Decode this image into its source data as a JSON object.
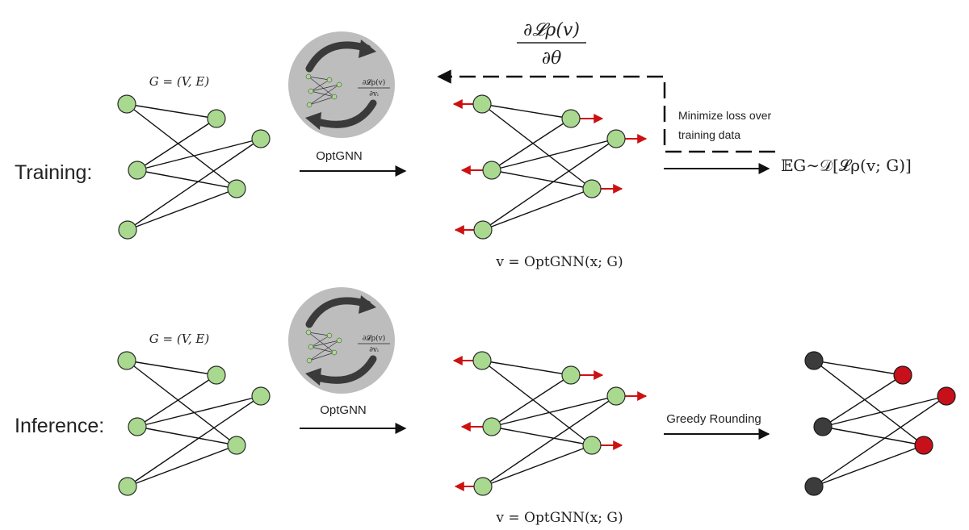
{
  "colors": {
    "node_fill": "#a8d98f",
    "node_stroke": "#2a2a2a",
    "edge": "#111111",
    "vector_arrow": "#cc1111",
    "gnn_circle": "#bdbdbd",
    "gnn_loop": "#3a3a3a",
    "rounded_black": "#3c3c3c",
    "rounded_red": "#c8101a"
  },
  "training": {
    "row_label": "Training:",
    "graph_label": "G = (V, E)",
    "gnn_label": "OptGNN",
    "gnn_inner_formula_num": "∂𝓛ρ(v)",
    "gnn_inner_formula_den": "∂vᵢ",
    "output_label": "v = OptGNN(x; G)",
    "gradient_num": "∂𝓛ρ(v)",
    "gradient_den": "∂θ",
    "minimize_line1": "Minimize loss over",
    "minimize_line2": "training data",
    "expectation": "𝔼G∼𝒟[𝓛ρ(v; G)]"
  },
  "inference": {
    "row_label": "Inference:",
    "graph_label": "G = (V, E)",
    "gnn_label": "OptGNN",
    "gnn_inner_formula_num": "∂𝓛ρ(v)",
    "gnn_inner_formula_den": "∂vᵢ",
    "output_label": "v = OptGNN(x; G)",
    "rounding_label": "Greedy Rounding"
  }
}
